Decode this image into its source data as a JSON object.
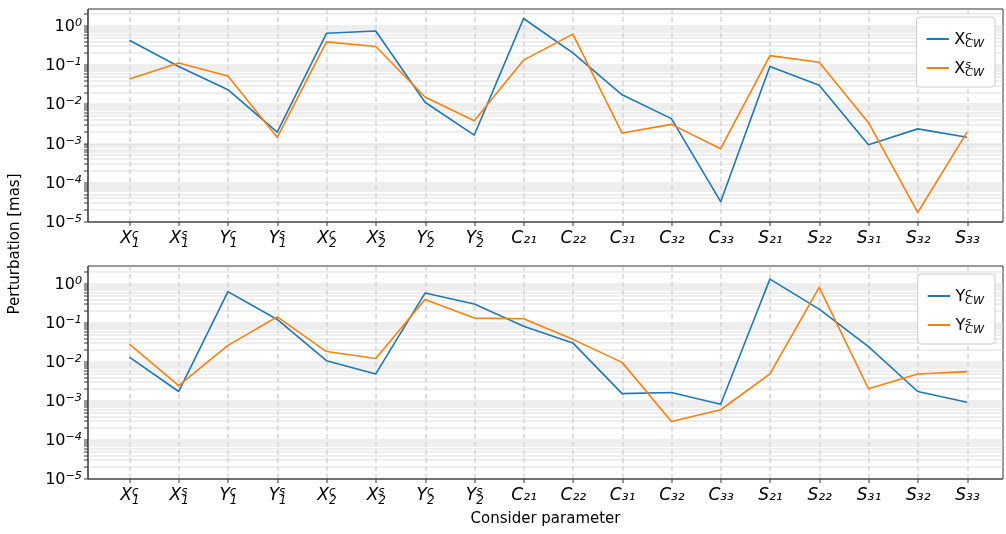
{
  "chart_data": [
    {
      "type": "line",
      "ylabel": "Perturbation [mas]",
      "categories": [
        "X$^{c}$$_{1}$",
        "X$^{s}$$_{1}$",
        "Y$^{c}$$_{1}$",
        "Y$^{s}$$_{1}$",
        "X$^{c}$$_{2}$",
        "X$^{s}$$_{2}$",
        "Y$^{c}$$_{2}$",
        "Y$^{s}$$_{2}$",
        "C₂₁",
        "C₂₂",
        "C₃₁",
        "C₃₂",
        "C₃₃",
        "S₂₁",
        "S₂₂",
        "S₃₁",
        "S₃₂",
        "S₃₃"
      ],
      "series": [
        {
          "name": "X$^{c}$$_{CW}$",
          "color": "#1f77b4",
          "values": [
            0.42,
            0.09,
            0.023,
            0.0019,
            0.63,
            0.72,
            0.011,
            0.0016,
            1.5,
            0.2,
            0.017,
            0.0042,
            3.2e-05,
            0.09,
            0.03,
            0.0009,
            0.0023,
            0.0014
          ]
        },
        {
          "name": "X$^{s}$$_{CW}$",
          "color": "#ff7f0e",
          "values": [
            0.043,
            0.11,
            0.051,
            0.0014,
            0.38,
            0.29,
            0.015,
            0.0037,
            0.13,
            0.6,
            0.0018,
            0.003,
            0.00072,
            0.17,
            0.115,
            0.0033,
            1.7e-05,
            0.0019
          ]
        }
      ],
      "log": true,
      "ylim": [
        1e-05,
        2.7
      ],
      "yticks": [
        {
          "value": 1e-05,
          "label": "10$^{−5}$"
        },
        {
          "value": 2e-05,
          "label": null
        },
        {
          "value": 3e-05,
          "label": null
        },
        {
          "value": 4e-05,
          "label": null
        },
        {
          "value": 5e-05,
          "label": null
        },
        {
          "value": 6e-05,
          "label": null
        },
        {
          "value": 7e-05,
          "label": null
        },
        {
          "value": 8e-05,
          "label": null
        },
        {
          "value": 9e-05,
          "label": null
        },
        {
          "value": 0.0001,
          "label": "10$^{−4}$"
        },
        {
          "value": 0.0002,
          "label": null
        },
        {
          "value": 0.0003,
          "label": null
        },
        {
          "value": 0.0004,
          "label": null
        },
        {
          "value": 0.0005,
          "label": null
        },
        {
          "value": 0.0006,
          "label": null
        },
        {
          "value": 0.0007,
          "label": null
        },
        {
          "value": 0.0008,
          "label": null
        },
        {
          "value": 0.0009,
          "label": null
        },
        {
          "value": 0.001,
          "label": "10$^{−3}$"
        },
        {
          "value": 0.002,
          "label": null
        },
        {
          "value": 0.003,
          "label": null
        },
        {
          "value": 0.004,
          "label": null
        },
        {
          "value": 0.005,
          "label": null
        },
        {
          "value": 0.006,
          "label": null
        },
        {
          "value": 0.007,
          "label": null
        },
        {
          "value": 0.008,
          "label": null
        },
        {
          "value": 0.009,
          "label": null
        },
        {
          "value": 0.01,
          "label": "10$^{−2}$"
        },
        {
          "value": 0.02,
          "label": null
        },
        {
          "value": 0.03,
          "label": null
        },
        {
          "value": 0.04,
          "label": null
        },
        {
          "value": 0.05,
          "label": null
        },
        {
          "value": 0.06,
          "label": null
        },
        {
          "value": 0.07,
          "label": null
        },
        {
          "value": 0.08,
          "label": null
        },
        {
          "value": 0.09,
          "label": null
        },
        {
          "value": 0.1,
          "label": "10$^{−1}$"
        },
        {
          "value": 0.2,
          "label": null
        },
        {
          "value": 0.3,
          "label": null
        },
        {
          "value": 0.4,
          "label": null
        },
        {
          "value": 0.5,
          "label": null
        },
        {
          "value": 0.6,
          "label": null
        },
        {
          "value": 0.7,
          "label": null
        },
        {
          "value": 0.8,
          "label": null
        },
        {
          "value": 0.9,
          "label": null
        },
        {
          "value": 1,
          "label": "10$^{0}$"
        },
        {
          "value": 2,
          "label": null
        }
      ],
      "grid": true,
      "legend": "top right"
    },
    {
      "type": "line",
      "xlabel": "Consider parameter",
      "categories": [
        "X$^{c}$$_{1}$",
        "X$^{s}$$_{1}$",
        "Y$^{c}$$_{1}$",
        "Y$^{s}$$_{1}$",
        "X$^{c}$$_{2}$",
        "X$^{s}$$_{2}$",
        "Y$^{c}$$_{2}$",
        "Y$^{s}$$_{2}$",
        "C₂₁",
        "C₂₂",
        "C₃₁",
        "C₃₂",
        "C₃₃",
        "S₂₁",
        "S₂₂",
        "S₃₁",
        "S₃₂",
        "S₃₃"
      ],
      "series": [
        {
          "name": "Y$^{c}$$_{CW}$",
          "color": "#1f77b4",
          "values": [
            0.013,
            0.0017,
            0.62,
            0.12,
            0.0105,
            0.0048,
            0.57,
            0.3,
            0.08,
            0.03,
            0.0015,
            0.0016,
            0.0008,
            1.3,
            0.22,
            0.024,
            0.0017,
            0.0009
          ]
        },
        {
          "name": "Y$^{s}$$_{CW}$",
          "color": "#ff7f0e",
          "values": [
            0.028,
            0.0024,
            0.026,
            0.14,
            0.018,
            0.012,
            0.39,
            0.13,
            0.125,
            0.037,
            0.0095,
            0.00029,
            0.00058,
            0.0048,
            0.8,
            0.002,
            0.0048,
            0.0055
          ]
        }
      ],
      "log": true,
      "ylim": [
        1e-05,
        2.9
      ],
      "yticks": [
        {
          "value": 1e-05,
          "label": "10$^{−5}$"
        },
        {
          "value": 2e-05,
          "label": null
        },
        {
          "value": 3e-05,
          "label": null
        },
        {
          "value": 4e-05,
          "label": null
        },
        {
          "value": 5e-05,
          "label": null
        },
        {
          "value": 6e-05,
          "label": null
        },
        {
          "value": 7e-05,
          "label": null
        },
        {
          "value": 8e-05,
          "label": null
        },
        {
          "value": 9e-05,
          "label": null
        },
        {
          "value": 0.0001,
          "label": "10$^{−4}$"
        },
        {
          "value": 0.0002,
          "label": null
        },
        {
          "value": 0.0003,
          "label": null
        },
        {
          "value": 0.0004,
          "label": null
        },
        {
          "value": 0.0005,
          "label": null
        },
        {
          "value": 0.0006,
          "label": null
        },
        {
          "value": 0.0007,
          "label": null
        },
        {
          "value": 0.0008,
          "label": null
        },
        {
          "value": 0.0009,
          "label": null
        },
        {
          "value": 0.001,
          "label": "10$^{−3}$"
        },
        {
          "value": 0.002,
          "label": null
        },
        {
          "value": 0.003,
          "label": null
        },
        {
          "value": 0.004,
          "label": null
        },
        {
          "value": 0.005,
          "label": null
        },
        {
          "value": 0.006,
          "label": null
        },
        {
          "value": 0.007,
          "label": null
        },
        {
          "value": 0.008,
          "label": null
        },
        {
          "value": 0.009,
          "label": null
        },
        {
          "value": 0.01,
          "label": "10$^{−2}$"
        },
        {
          "value": 0.02,
          "label": null
        },
        {
          "value": 0.03,
          "label": null
        },
        {
          "value": 0.04,
          "label": null
        },
        {
          "value": 0.05,
          "label": null
        },
        {
          "value": 0.06,
          "label": null
        },
        {
          "value": 0.07,
          "label": null
        },
        {
          "value": 0.08,
          "label": null
        },
        {
          "value": 0.09,
          "label": null
        },
        {
          "value": 0.1,
          "label": "10$^{−1}$"
        },
        {
          "value": 0.2,
          "label": null
        },
        {
          "value": 0.3,
          "label": null
        },
        {
          "value": 0.4,
          "label": null
        },
        {
          "value": 0.5,
          "label": null
        },
        {
          "value": 0.6,
          "label": null
        },
        {
          "value": 0.7,
          "label": null
        },
        {
          "value": 0.8,
          "label": null
        },
        {
          "value": 0.9,
          "label": null
        },
        {
          "value": 1,
          "label": "10$^{0}$"
        },
        {
          "value": 2,
          "label": null
        }
      ],
      "grid": true,
      "legend": "top right"
    }
  ]
}
